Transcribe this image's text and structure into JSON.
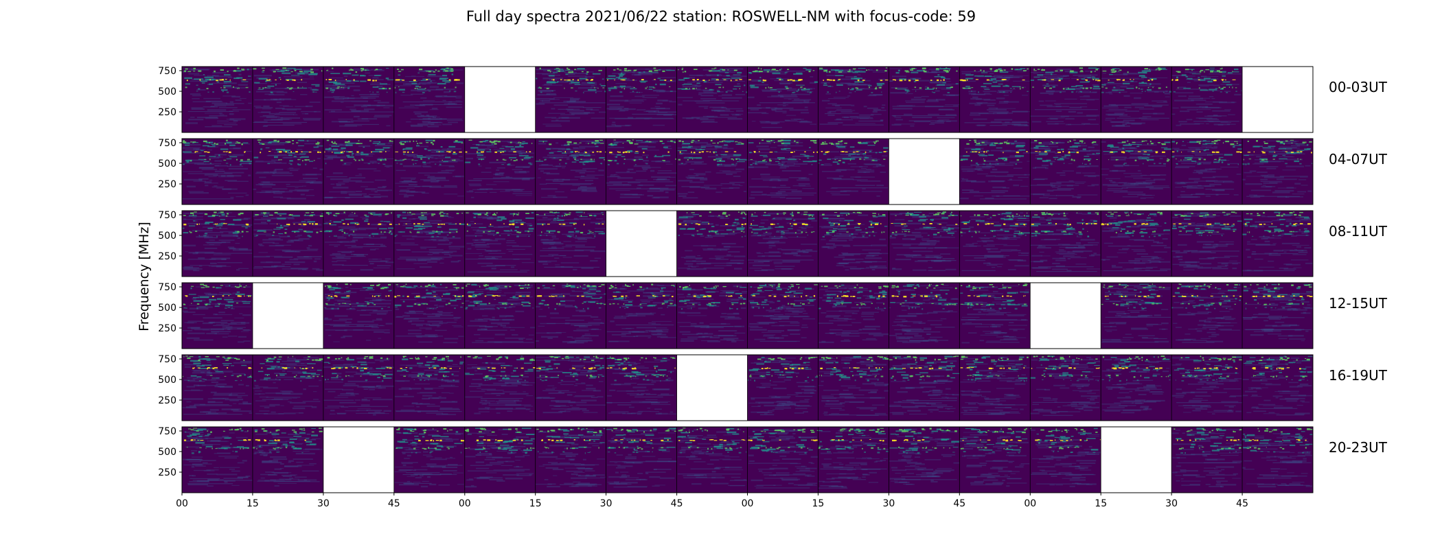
{
  "chart_data": {
    "type": "heatmap",
    "title": "Full day spectra 2021/06/22 station: ROSWELL-NM with focus-code: 59",
    "ylabel": "Frequency [MHz]",
    "xlabel": "",
    "y_ticks": [
      250,
      500,
      750
    ],
    "y_range": [
      0,
      800
    ],
    "x_tick_labels": [
      "00",
      "15",
      "30",
      "45",
      "00",
      "15",
      "30",
      "45",
      "00",
      "15",
      "30",
      "45",
      "00",
      "15",
      "30",
      "45"
    ],
    "panels_per_row": 16,
    "colormap": [
      "#440154",
      "#3b528b",
      "#21918c",
      "#5ec962",
      "#fde725"
    ],
    "empty_color": "#ffffff",
    "rows": [
      {
        "label": "00-03UT",
        "missing": [
          4,
          15
        ]
      },
      {
        "label": "04-07UT",
        "missing": [
          10
        ]
      },
      {
        "label": "08-11UT",
        "missing": [
          6
        ]
      },
      {
        "label": "12-15UT",
        "missing": [
          1,
          12
        ]
      },
      {
        "label": "16-19UT",
        "missing": [
          7
        ]
      },
      {
        "label": "20-23UT",
        "missing": [
          2,
          13
        ]
      }
    ]
  }
}
